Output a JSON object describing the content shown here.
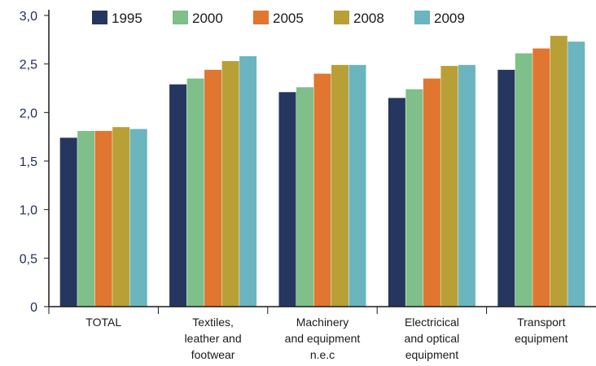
{
  "chart_data": {
    "type": "bar",
    "title": "",
    "xlabel": "",
    "ylabel": "",
    "ylim": [
      0,
      3.0
    ],
    "yticks": [
      "0",
      "0,5",
      "1,0",
      "1,5",
      "2,0",
      "2,5",
      "3,0"
    ],
    "grid": false,
    "legend_position": "top",
    "categories": [
      [
        "TOTAL"
      ],
      [
        "Textiles,",
        "leather and",
        "footwear"
      ],
      [
        "Machinery",
        "and equipment",
        "n.e.c"
      ],
      [
        "Electricical",
        "and optical",
        "equipment"
      ],
      [
        "Transport",
        "equipment"
      ]
    ],
    "series": [
      {
        "name": "1995",
        "color": "#26375f",
        "values": [
          1.74,
          2.29,
          2.21,
          2.15,
          2.44
        ]
      },
      {
        "name": "2000",
        "color": "#7fbf8a",
        "values": [
          1.81,
          2.35,
          2.26,
          2.24,
          2.61
        ]
      },
      {
        "name": "2005",
        "color": "#e0762f",
        "values": [
          1.81,
          2.44,
          2.4,
          2.35,
          2.66
        ]
      },
      {
        "name": "2008",
        "color": "#b9a036",
        "values": [
          1.85,
          2.53,
          2.49,
          2.48,
          2.79
        ]
      },
      {
        "name": "2009",
        "color": "#6ab5be",
        "values": [
          1.83,
          2.58,
          2.49,
          2.49,
          2.73
        ]
      }
    ]
  }
}
